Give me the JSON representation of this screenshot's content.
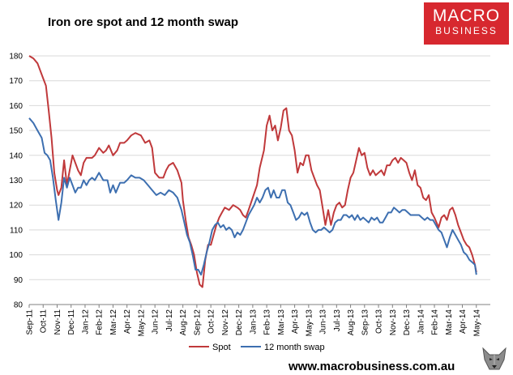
{
  "header": {
    "title": "Iron ore spot and 12 month swap",
    "logo_line1": "MACRO",
    "logo_line2": "BUSINESS"
  },
  "footer": {
    "url": "www.macrobusiness.com.au"
  },
  "colors": {
    "spot": "#c0393b",
    "swap": "#3d6fb0",
    "logo_bg": "#d7282f",
    "grid": "#d9d9d9"
  },
  "chart_data": {
    "type": "line",
    "title": "Iron ore spot and 12 month swap",
    "xlabel": "",
    "ylabel": "",
    "ylim": [
      80,
      180
    ],
    "yticks": [
      80,
      90,
      100,
      110,
      120,
      130,
      140,
      150,
      160,
      170,
      180
    ],
    "grid": "horizontal",
    "legend_position": "bottom",
    "categories": [
      "Sep-11",
      "Oct-11",
      "Nov-11",
      "Dec-11",
      "Jan-12",
      "Feb-12",
      "Mar-12",
      "Apr-12",
      "May-12",
      "Jun-12",
      "Jul-12",
      "Aug-12",
      "Sep-12",
      "Oct-12",
      "Nov-12",
      "Dec-12",
      "Jan-13",
      "Feb-13",
      "Mar-13",
      "Apr-13",
      "May-13",
      "Jun-13",
      "Jul-13",
      "Aug-13",
      "Sep-13",
      "Oct-13",
      "Nov-13",
      "Dec-13",
      "Jan-14",
      "Feb-14",
      "Mar-14",
      "Apr-14",
      "May-14"
    ],
    "x_range": [
      0,
      33
    ],
    "series": [
      {
        "name": "Spot",
        "color": "#c0393b",
        "points": [
          [
            0,
            180
          ],
          [
            0.3,
            179
          ],
          [
            0.6,
            177
          ],
          [
            1,
            171
          ],
          [
            1.2,
            168
          ],
          [
            1.4,
            158
          ],
          [
            1.6,
            147
          ],
          [
            1.8,
            133
          ],
          [
            2,
            126
          ],
          [
            2.1,
            124
          ],
          [
            2.3,
            127
          ],
          [
            2.5,
            138
          ],
          [
            2.7,
            128
          ],
          [
            2.9,
            134
          ],
          [
            3.1,
            140
          ],
          [
            3.3,
            137
          ],
          [
            3.5,
            134
          ],
          [
            3.7,
            132
          ],
          [
            3.9,
            137
          ],
          [
            4.1,
            139
          ],
          [
            4.3,
            139
          ],
          [
            4.5,
            139
          ],
          [
            4.7,
            140
          ],
          [
            5,
            143
          ],
          [
            5.3,
            141
          ],
          [
            5.5,
            142
          ],
          [
            5.7,
            144
          ],
          [
            6,
            140
          ],
          [
            6.3,
            142
          ],
          [
            6.5,
            145
          ],
          [
            6.8,
            145
          ],
          [
            7,
            146
          ],
          [
            7.3,
            148
          ],
          [
            7.6,
            149
          ],
          [
            8,
            148
          ],
          [
            8.3,
            145
          ],
          [
            8.6,
            146
          ],
          [
            8.8,
            143
          ],
          [
            9,
            133
          ],
          [
            9.3,
            131
          ],
          [
            9.6,
            131
          ],
          [
            9.8,
            134
          ],
          [
            10,
            136
          ],
          [
            10.3,
            137
          ],
          [
            10.6,
            134
          ],
          [
            10.9,
            129
          ],
          [
            11,
            122
          ],
          [
            11.2,
            114
          ],
          [
            11.4,
            107
          ],
          [
            11.6,
            104
          ],
          [
            11.8,
            100
          ],
          [
            12,
            93
          ],
          [
            12.2,
            88
          ],
          [
            12.4,
            87
          ],
          [
            12.6,
            98
          ],
          [
            12.8,
            104
          ],
          [
            13,
            104
          ],
          [
            13.2,
            108
          ],
          [
            13.4,
            112
          ],
          [
            13.6,
            115
          ],
          [
            13.8,
            117
          ],
          [
            14,
            119
          ],
          [
            14.3,
            118
          ],
          [
            14.6,
            120
          ],
          [
            14.9,
            119
          ],
          [
            15.1,
            118
          ],
          [
            15.3,
            116
          ],
          [
            15.5,
            115
          ],
          [
            15.7,
            118
          ],
          [
            16,
            123
          ],
          [
            16.3,
            128
          ],
          [
            16.5,
            135
          ],
          [
            16.8,
            142
          ],
          [
            17,
            152
          ],
          [
            17.2,
            156
          ],
          [
            17.4,
            150
          ],
          [
            17.6,
            152
          ],
          [
            17.8,
            146
          ],
          [
            18,
            151
          ],
          [
            18.2,
            158
          ],
          [
            18.4,
            159
          ],
          [
            18.6,
            150
          ],
          [
            18.8,
            148
          ],
          [
            19,
            142
          ],
          [
            19.2,
            133
          ],
          [
            19.4,
            137
          ],
          [
            19.6,
            136
          ],
          [
            19.8,
            140
          ],
          [
            20,
            140
          ],
          [
            20.2,
            134
          ],
          [
            20.4,
            131
          ],
          [
            20.6,
            128
          ],
          [
            20.8,
            126
          ],
          [
            21,
            119
          ],
          [
            21.2,
            112
          ],
          [
            21.4,
            118
          ],
          [
            21.6,
            112
          ],
          [
            21.8,
            117
          ],
          [
            22,
            120
          ],
          [
            22.2,
            121
          ],
          [
            22.4,
            119
          ],
          [
            22.6,
            120
          ],
          [
            22.8,
            126
          ],
          [
            23,
            131
          ],
          [
            23.2,
            133
          ],
          [
            23.4,
            138
          ],
          [
            23.6,
            143
          ],
          [
            23.8,
            140
          ],
          [
            24,
            141
          ],
          [
            24.2,
            135
          ],
          [
            24.4,
            132
          ],
          [
            24.6,
            134
          ],
          [
            24.8,
            132
          ],
          [
            25,
            133
          ],
          [
            25.2,
            134
          ],
          [
            25.4,
            132
          ],
          [
            25.6,
            136
          ],
          [
            25.8,
            136
          ],
          [
            26,
            138
          ],
          [
            26.2,
            139
          ],
          [
            26.4,
            137
          ],
          [
            26.6,
            139
          ],
          [
            26.8,
            138
          ],
          [
            27,
            137
          ],
          [
            27.2,
            133
          ],
          [
            27.4,
            130
          ],
          [
            27.6,
            134
          ],
          [
            27.8,
            128
          ],
          [
            28,
            127
          ],
          [
            28.2,
            123
          ],
          [
            28.4,
            122
          ],
          [
            28.6,
            124
          ],
          [
            28.8,
            117
          ],
          [
            29,
            115
          ],
          [
            29.3,
            111
          ],
          [
            29.5,
            115
          ],
          [
            29.7,
            116
          ],
          [
            29.9,
            114
          ],
          [
            30.1,
            118
          ],
          [
            30.3,
            119
          ],
          [
            30.5,
            116
          ],
          [
            30.7,
            112
          ],
          [
            30.9,
            109
          ],
          [
            31.1,
            106
          ],
          [
            31.3,
            104
          ],
          [
            31.5,
            103
          ],
          [
            31.7,
            100
          ],
          [
            31.9,
            96
          ],
          [
            32,
            93
          ]
        ]
      },
      {
        "name": "12 month swap",
        "color": "#3d6fb0",
        "points": [
          [
            0,
            155
          ],
          [
            0.3,
            153
          ],
          [
            0.6,
            150
          ],
          [
            0.9,
            147
          ],
          [
            1.1,
            141
          ],
          [
            1.3,
            140
          ],
          [
            1.5,
            138
          ],
          [
            1.7,
            131
          ],
          [
            1.9,
            122
          ],
          [
            2.1,
            114
          ],
          [
            2.3,
            121
          ],
          [
            2.5,
            131
          ],
          [
            2.7,
            127
          ],
          [
            2.9,
            131
          ],
          [
            3.1,
            128
          ],
          [
            3.3,
            125
          ],
          [
            3.5,
            127
          ],
          [
            3.7,
            127
          ],
          [
            3.9,
            130
          ],
          [
            4.1,
            128
          ],
          [
            4.3,
            130
          ],
          [
            4.5,
            131
          ],
          [
            4.7,
            130
          ],
          [
            5,
            133
          ],
          [
            5.3,
            130
          ],
          [
            5.6,
            130
          ],
          [
            5.8,
            125
          ],
          [
            6,
            128
          ],
          [
            6.2,
            125
          ],
          [
            6.5,
            129
          ],
          [
            6.8,
            129
          ],
          [
            7,
            130
          ],
          [
            7.3,
            132
          ],
          [
            7.6,
            131
          ],
          [
            7.9,
            131
          ],
          [
            8.2,
            130
          ],
          [
            8.5,
            128
          ],
          [
            8.8,
            126
          ],
          [
            9.1,
            124
          ],
          [
            9.4,
            125
          ],
          [
            9.7,
            124
          ],
          [
            10,
            126
          ],
          [
            10.3,
            125
          ],
          [
            10.6,
            123
          ],
          [
            10.9,
            118
          ],
          [
            11.1,
            113
          ],
          [
            11.3,
            108
          ],
          [
            11.5,
            105
          ],
          [
            11.7,
            100
          ],
          [
            11.9,
            94
          ],
          [
            12.1,
            94
          ],
          [
            12.3,
            92
          ],
          [
            12.5,
            96
          ],
          [
            12.7,
            101
          ],
          [
            12.9,
            105
          ],
          [
            13.1,
            110
          ],
          [
            13.3,
            112
          ],
          [
            13.5,
            113
          ],
          [
            13.7,
            111
          ],
          [
            13.9,
            112
          ],
          [
            14.1,
            110
          ],
          [
            14.3,
            111
          ],
          [
            14.5,
            110
          ],
          [
            14.7,
            107
          ],
          [
            14.9,
            109
          ],
          [
            15.1,
            108
          ],
          [
            15.3,
            110
          ],
          [
            15.5,
            113
          ],
          [
            15.7,
            116
          ],
          [
            15.9,
            118
          ],
          [
            16.1,
            120
          ],
          [
            16.3,
            123
          ],
          [
            16.5,
            121
          ],
          [
            16.7,
            123
          ],
          [
            16.9,
            126
          ],
          [
            17.1,
            127
          ],
          [
            17.3,
            123
          ],
          [
            17.5,
            126
          ],
          [
            17.7,
            123
          ],
          [
            17.9,
            123
          ],
          [
            18.1,
            126
          ],
          [
            18.3,
            126
          ],
          [
            18.5,
            121
          ],
          [
            18.7,
            120
          ],
          [
            18.9,
            117
          ],
          [
            19.1,
            114
          ],
          [
            19.3,
            115
          ],
          [
            19.5,
            117
          ],
          [
            19.7,
            116
          ],
          [
            19.9,
            117
          ],
          [
            20.1,
            113
          ],
          [
            20.3,
            110
          ],
          [
            20.5,
            109
          ],
          [
            20.7,
            110
          ],
          [
            20.9,
            110
          ],
          [
            21.1,
            111
          ],
          [
            21.3,
            110
          ],
          [
            21.5,
            109
          ],
          [
            21.7,
            110
          ],
          [
            21.9,
            113
          ],
          [
            22.1,
            114
          ],
          [
            22.3,
            114
          ],
          [
            22.5,
            116
          ],
          [
            22.7,
            116
          ],
          [
            22.9,
            115
          ],
          [
            23.1,
            116
          ],
          [
            23.3,
            114
          ],
          [
            23.5,
            116
          ],
          [
            23.7,
            114
          ],
          [
            23.9,
            115
          ],
          [
            24.1,
            114
          ],
          [
            24.3,
            113
          ],
          [
            24.5,
            115
          ],
          [
            24.7,
            114
          ],
          [
            24.9,
            115
          ],
          [
            25.1,
            113
          ],
          [
            25.3,
            113
          ],
          [
            25.5,
            115
          ],
          [
            25.7,
            117
          ],
          [
            25.9,
            117
          ],
          [
            26.1,
            119
          ],
          [
            26.3,
            118
          ],
          [
            26.5,
            117
          ],
          [
            26.7,
            118
          ],
          [
            26.9,
            118
          ],
          [
            27.1,
            117
          ],
          [
            27.3,
            116
          ],
          [
            27.5,
            116
          ],
          [
            27.7,
            116
          ],
          [
            27.9,
            116
          ],
          [
            28.1,
            115
          ],
          [
            28.3,
            114
          ],
          [
            28.5,
            115
          ],
          [
            28.7,
            114
          ],
          [
            28.9,
            114
          ],
          [
            29.1,
            112
          ],
          [
            29.3,
            110
          ],
          [
            29.5,
            109
          ],
          [
            29.7,
            106
          ],
          [
            29.9,
            103
          ],
          [
            30.1,
            107
          ],
          [
            30.3,
            110
          ],
          [
            30.5,
            108
          ],
          [
            30.7,
            106
          ],
          [
            30.9,
            104
          ],
          [
            31.1,
            101
          ],
          [
            31.3,
            100
          ],
          [
            31.5,
            98
          ],
          [
            31.7,
            97
          ],
          [
            31.9,
            96
          ],
          [
            32,
            92
          ]
        ]
      }
    ]
  }
}
